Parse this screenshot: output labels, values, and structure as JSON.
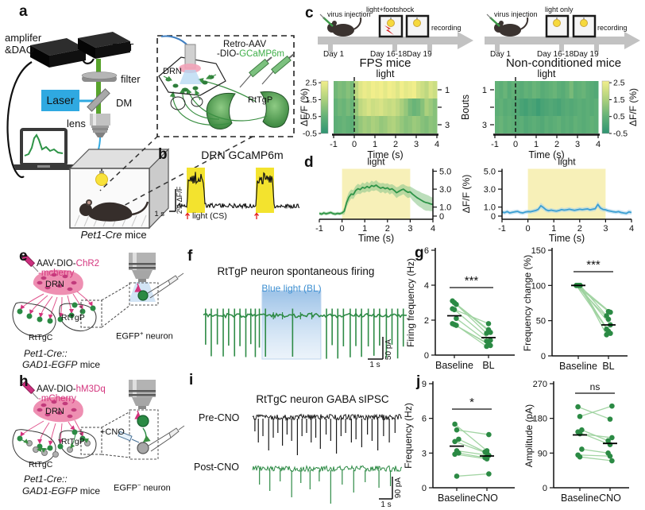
{
  "figure": {
    "panel_labels": {
      "a": "a",
      "b": "b",
      "c": "c",
      "d": "d",
      "e": "e",
      "f": "f",
      "g": "g",
      "h": "h",
      "i": "i",
      "j": "j"
    },
    "a": {
      "amplifier_line1": "amplifer",
      "amplifier_line2": "&DAQ",
      "pmt": "PMT",
      "filter": "filter",
      "laser": "Laser",
      "dm": "DM",
      "lens": "lens",
      "inset_line1": "Retro-AAV",
      "inset_line2_prefix": "-DIO-",
      "inset_line2_green": "GCaMP6m",
      "drn": "DRN",
      "rttgp": "RtTgP",
      "mice_italic": "Pet1-Cre",
      "mice_normal": " mice"
    },
    "b": {
      "title": "DRN GCaMP6m",
      "scale_v": "2% ΔF/F",
      "scale_h": "1 s",
      "light_label": "light (CS)",
      "bursts": [
        [
          0.078,
          0.227
        ],
        [
          0.643,
          0.792
        ]
      ]
    },
    "c": {
      "left": {
        "virus": "virus injection",
        "cond": "light+footshock",
        "recording": "recording",
        "day1": "Day 1",
        "day2": "Day 16-18",
        "day3": "Day 19"
      },
      "right": {
        "virus": "virus injection",
        "cond": "light only",
        "recording": "recording",
        "day1": "Day 1",
        "day2": "Day 16-18",
        "day3": "Day 19"
      }
    },
    "d": {
      "dff_label": "ΔF/F (%)"
    },
    "e": {
      "virus_prefix": "AAV-DIO-",
      "virus_gene": "ChR2",
      "virus_tag": "-mcherry",
      "drn": "DRN",
      "rttgp": "RtTgP",
      "rttgc": "RtTgC",
      "neuron": "EGFP",
      "neuron_sup": "+",
      "neuron_rest": " neuron",
      "mice1": "Pet1-Cre::",
      "mice2_italic": "GAD1-EGFP",
      "mice2_rest": " mice"
    },
    "f": {
      "title": "RtTgP neuron spontaneous firing",
      "light_label": "Blue light (BL)",
      "scale_v": "50 pA",
      "scale_h": "1 s",
      "duration_s": 9,
      "light_window_s": [
        2.6,
        5.2
      ],
      "spikes_pre_s": [
        0.1,
        0.35,
        0.62,
        0.88,
        1.12,
        1.38,
        1.62,
        1.88,
        2.1,
        2.3,
        2.48
      ],
      "spikes_light_s": [
        2.75,
        3.95
      ],
      "spikes_post_s": [
        5.45,
        5.7,
        5.95,
        6.2,
        6.5,
        6.75,
        7.0,
        7.3,
        7.55,
        7.8,
        8.1,
        8.35,
        8.6,
        8.85
      ]
    },
    "h": {
      "virus_prefix": "AAV-DIO-",
      "virus_gene": "hM3Dq",
      "virus_tag": "-mCherry",
      "cno": "+CNO",
      "drn": "DRN",
      "rttgp": "RtTgP",
      "rttgc": "RtTgC",
      "neuron": "EGFP",
      "neuron_sup": "−",
      "neuron_rest": " neuron",
      "mice1": "Pet1-Cre::",
      "mice2_italic": "GAD1-EGFP",
      "mice2_rest": " mice"
    },
    "i": {
      "title": "RtTgC neuron GABA sIPSC",
      "pre_label": "Pre-CNO",
      "post_label": "Post-CNO",
      "scale_v": "90 pA",
      "scale_h": "1 s",
      "duration_s": 6.5,
      "pre_events": [
        [
          0.1,
          16
        ],
        [
          0.25,
          30
        ],
        [
          0.45,
          22
        ],
        [
          0.7,
          40
        ],
        [
          0.9,
          24
        ],
        [
          1.1,
          18
        ],
        [
          1.3,
          34
        ],
        [
          1.5,
          20
        ],
        [
          1.7,
          28
        ],
        [
          1.95,
          46
        ],
        [
          2.15,
          22
        ],
        [
          2.35,
          18
        ],
        [
          2.55,
          30
        ],
        [
          2.75,
          24
        ],
        [
          2.95,
          38
        ],
        [
          3.2,
          20
        ],
        [
          3.4,
          28
        ],
        [
          3.65,
          44
        ],
        [
          3.85,
          22
        ],
        [
          4.05,
          18
        ],
        [
          4.3,
          30
        ],
        [
          4.5,
          26
        ],
        [
          4.75,
          36
        ],
        [
          5.0,
          20
        ],
        [
          5.2,
          28
        ],
        [
          5.45,
          40
        ],
        [
          5.7,
          22
        ],
        [
          5.95,
          30
        ],
        [
          6.2,
          18
        ]
      ],
      "post_events": [
        [
          0.3,
          18
        ],
        [
          0.75,
          26
        ],
        [
          1.2,
          14
        ],
        [
          1.7,
          34
        ],
        [
          2.1,
          16
        ],
        [
          2.5,
          24
        ],
        [
          2.9,
          14
        ],
        [
          3.4,
          42
        ],
        [
          3.9,
          18
        ],
        [
          4.4,
          28
        ],
        [
          4.9,
          15
        ],
        [
          5.5,
          22
        ],
        [
          6.0,
          20
        ]
      ]
    }
  },
  "chart_data": [
    {
      "id": "hm1",
      "type": "heatmap",
      "title": "FPS mice",
      "light_label": "light",
      "xlabel": "Time (s)",
      "xlim": [
        -1,
        4
      ],
      "xticks": [
        -1,
        0,
        1,
        2,
        3,
        4
      ],
      "bouts_ticks": [
        1,
        3
      ],
      "colorbar_ticks": [
        2.5,
        1.5,
        0.5,
        -0.5
      ],
      "colorbar_label": "ΔF/F (%)",
      "clim": [
        -0.5,
        2.6
      ],
      "rows": [
        [
          0.7,
          0.9,
          0.8,
          1.0,
          0.8,
          1.8,
          2.3,
          2.5,
          2.4,
          2.6,
          2.5,
          2.7,
          2.4,
          2.6,
          2.5,
          2.3,
          2.6,
          2.4,
          2.5,
          2.6,
          2.2,
          2.0,
          1.8,
          2.2,
          2.0
        ],
        [
          0.5,
          0.7,
          0.6,
          0.8,
          0.6,
          1.2,
          1.8,
          2.0,
          2.2,
          2.0,
          2.1,
          2.2,
          2.0,
          1.9,
          2.0,
          1.8,
          1.5,
          1.2,
          0.8,
          0.6,
          0.7,
          1.0,
          1.5,
          1.3,
          1.0
        ],
        [
          0.4,
          0.5,
          0.6,
          0.5,
          0.4,
          0.9,
          1.2,
          1.4,
          1.3,
          1.5,
          1.4,
          1.2,
          1.3,
          1.5,
          1.6,
          1.4,
          1.2,
          1.0,
          1.1,
          1.3,
          1.2,
          1.0,
          0.9,
          1.1,
          1.0
        ]
      ]
    },
    {
      "id": "hm2",
      "type": "heatmap",
      "title": "Non-conditioned mice",
      "light_label": "light",
      "xlabel": "Time (s)",
      "xlim": [
        -1,
        4
      ],
      "xticks": [
        -1,
        0,
        1,
        2,
        3,
        4
      ],
      "bouts_ticks": [
        1,
        3
      ],
      "bouts_axis_label": "Bouts",
      "colorbar_ticks": [
        2.5,
        1.5,
        0.5,
        -0.5
      ],
      "colorbar_label": "ΔF/F (%)",
      "clim": [
        -0.5,
        2.6
      ],
      "rows": [
        [
          0.5,
          0.4,
          0.6,
          0.3,
          0.5,
          0.4,
          0.3,
          0.5,
          0.4,
          0.6,
          0.5,
          0.3,
          0.4,
          0.5,
          0.6,
          0.4,
          0.3,
          0.5,
          0.8,
          0.4,
          0.5,
          0.6,
          0.4,
          0.3,
          0.2
        ],
        [
          0.4,
          0.5,
          0.3,
          0.4,
          0.3,
          0.2,
          0.0,
          -0.1,
          0.1,
          0.0,
          -0.2,
          0.0,
          0.1,
          0.2,
          0.1,
          0.0,
          0.2,
          0.3,
          0.2,
          0.3,
          0.4,
          0.3,
          0.4,
          0.3,
          0.4
        ],
        [
          0.5,
          0.6,
          0.4,
          0.5,
          0.4,
          0.3,
          0.4,
          0.2,
          0.3,
          0.4,
          0.3,
          0.2,
          0.4,
          0.3,
          0.4,
          0.5,
          0.3,
          0.4,
          0.3,
          0.5,
          0.4,
          0.3,
          0.4,
          0.5,
          0.4
        ]
      ]
    },
    {
      "id": "d1",
      "type": "line",
      "light_label": "light",
      "xlabel": "Time (s)",
      "xlim": [
        -1,
        4
      ],
      "xticks": [
        -1,
        0,
        1,
        2,
        3,
        4
      ],
      "ylim": [
        0,
        5
      ],
      "yticks": [
        0,
        1,
        3,
        5
      ],
      "ytick_labels": [
        "0",
        "1.0",
        "3.0",
        "5.0"
      ],
      "light_window": [
        0,
        3
      ],
      "color": "#2e9447",
      "band": "#8fc88e",
      "x_start": -1,
      "x_step": 0.1,
      "values": [
        0.3,
        0.22,
        0.35,
        0.25,
        0.32,
        0.4,
        0.28,
        0.22,
        0.3,
        0.26,
        0.35,
        0.55,
        1.5,
        2.1,
        2.45,
        2.4,
        2.85,
        3.05,
        2.95,
        3.2,
        3.1,
        3.3,
        3.15,
        3.4,
        3.3,
        3.45,
        3.25,
        3.1,
        3.2,
        3.05,
        3.15,
        2.95,
        3.05,
        2.85,
        2.6,
        2.75,
        2.9,
        3.0,
        2.8,
        2.65,
        2.7,
        2.45,
        2.25,
        2.05,
        1.9,
        1.75,
        1.6,
        1.5,
        1.45,
        1.35,
        1.3
      ],
      "sem": [
        0.18,
        0.18,
        0.18,
        0.18,
        0.18,
        0.18,
        0.18,
        0.18,
        0.18,
        0.18,
        0.18,
        0.4,
        0.5,
        0.55,
        0.5,
        0.5,
        0.5,
        0.55,
        0.5,
        0.55,
        0.5,
        0.55,
        0.5,
        0.55,
        0.5,
        0.55,
        0.5,
        0.55,
        0.5,
        0.55,
        0.5,
        0.55,
        0.5,
        0.55,
        0.6,
        0.55,
        0.6,
        0.55,
        0.6,
        0.65,
        0.6,
        0.7,
        0.75,
        0.8,
        0.85,
        0.85,
        0.9,
        0.9,
        0.85,
        0.8,
        0.75
      ]
    },
    {
      "id": "d2",
      "type": "line",
      "light_label": "light",
      "xlabel": "Time (s)",
      "xlim": [
        -1,
        4
      ],
      "xticks": [
        -1,
        0,
        1,
        2,
        3,
        4
      ],
      "ylim": [
        0,
        5
      ],
      "yticks": [
        0,
        1,
        3,
        5
      ],
      "ytick_labels": [
        "0",
        "1.0",
        "3.0",
        "5.0"
      ],
      "light_window": [
        0,
        3
      ],
      "color": "#3a9fd3",
      "band": "#abd3ea",
      "x_start": -1,
      "x_step": 0.1,
      "values": [
        0.45,
        0.38,
        0.5,
        0.35,
        0.42,
        0.48,
        0.52,
        0.4,
        0.35,
        0.45,
        0.5,
        0.48,
        0.55,
        0.62,
        0.75,
        1.15,
        0.95,
        0.7,
        0.6,
        0.66,
        0.6,
        0.55,
        0.62,
        0.72,
        0.66,
        0.7,
        0.76,
        0.7,
        0.64,
        0.7,
        0.76,
        0.72,
        0.76,
        0.8,
        0.7,
        0.76,
        0.82,
        1.3,
        0.9,
        0.74,
        0.7,
        0.6,
        0.54,
        0.48,
        0.44,
        0.5,
        0.4,
        0.34,
        0.3,
        0.46,
        0.4
      ],
      "sem": [
        0.22,
        0.22,
        0.22,
        0.22,
        0.22,
        0.22,
        0.22,
        0.22,
        0.22,
        0.22,
        0.22,
        0.22,
        0.22,
        0.24,
        0.26,
        0.34,
        0.3,
        0.26,
        0.24,
        0.24,
        0.22,
        0.22,
        0.22,
        0.24,
        0.22,
        0.24,
        0.24,
        0.22,
        0.22,
        0.24,
        0.24,
        0.22,
        0.24,
        0.24,
        0.22,
        0.24,
        0.26,
        0.36,
        0.3,
        0.24,
        0.22,
        0.22,
        0.22,
        0.22,
        0.22,
        0.22,
        0.24,
        0.22,
        0.22,
        0.26,
        0.24
      ]
    },
    {
      "id": "g1",
      "type": "paired-scatter",
      "ylabel": "Firing frequency (Hz)",
      "ylim": [
        0,
        6
      ],
      "yticks": [
        0,
        2,
        4,
        6
      ],
      "categories": [
        "Baseline",
        "BL"
      ],
      "sig": "***",
      "pairs": [
        [
          3.1,
          1.45
        ],
        [
          3.0,
          1.3
        ],
        [
          2.9,
          1.25
        ],
        [
          2.65,
          1.8
        ],
        [
          2.6,
          0.85
        ],
        [
          2.1,
          0.8
        ],
        [
          1.8,
          0.65
        ],
        [
          1.75,
          0.55
        ],
        [
          1.7,
          0.5
        ]
      ],
      "means": [
        2.25,
        1.0
      ]
    },
    {
      "id": "g2",
      "type": "paired-scatter",
      "ylabel": "Frequency change (%)",
      "ylim": [
        0,
        150
      ],
      "yticks": [
        0,
        50,
        100,
        150
      ],
      "categories": [
        "Baseline",
        "BL"
      ],
      "sig": "***",
      "pairs": [
        [
          100,
          63
        ],
        [
          100,
          62
        ],
        [
          100,
          57
        ],
        [
          100,
          52
        ],
        [
          100,
          44
        ],
        [
          100,
          38
        ],
        [
          100,
          35
        ],
        [
          100,
          32
        ],
        [
          100,
          30
        ]
      ],
      "means": [
        100,
        44
      ]
    },
    {
      "id": "j1",
      "type": "paired-scatter",
      "ylabel": "Frequency (Hz)",
      "ylim": [
        0,
        9
      ],
      "yticks": [
        0,
        3,
        6,
        9
      ],
      "categories": [
        "Baseline",
        "CNO"
      ],
      "sig": "*",
      "pairs": [
        [
          5.5,
          3.2
        ],
        [
          5.0,
          4.6
        ],
        [
          4.2,
          3.1
        ],
        [
          4.0,
          3.0
        ],
        [
          3.2,
          2.8
        ],
        [
          3.0,
          2.6
        ],
        [
          2.9,
          2.5
        ],
        [
          1.0,
          1.2
        ]
      ],
      "means": [
        3.6,
        2.75
      ]
    },
    {
      "id": "j2",
      "type": "paired-scatter",
      "ylabel": "Amplitude (pA)",
      "ylim": [
        0,
        270
      ],
      "yticks": [
        0,
        90,
        180,
        270
      ],
      "categories": [
        "Baseline",
        "CNO"
      ],
      "sig": "ns",
      "pairs": [
        [
          210,
          178
        ],
        [
          185,
          212
        ],
        [
          150,
          122
        ],
        [
          145,
          112
        ],
        [
          140,
          130
        ],
        [
          100,
          90
        ],
        [
          85,
          82
        ],
        [
          80,
          70
        ]
      ],
      "means": [
        137,
        115
      ]
    }
  ],
  "colors": {
    "accent_green": "#2b8a44",
    "pair_line": "#9fd3a0",
    "laser_blue": "#2fa9e1",
    "magenta": "#d4357e",
    "gcamp_green": "#3fae49",
    "yellow_block": "#f3e32e",
    "yellow_light": "#f7f0b8",
    "blue_light": "#9cc2e6",
    "heat_low": "#2f9472",
    "heat_high": "#f1ee8b"
  }
}
